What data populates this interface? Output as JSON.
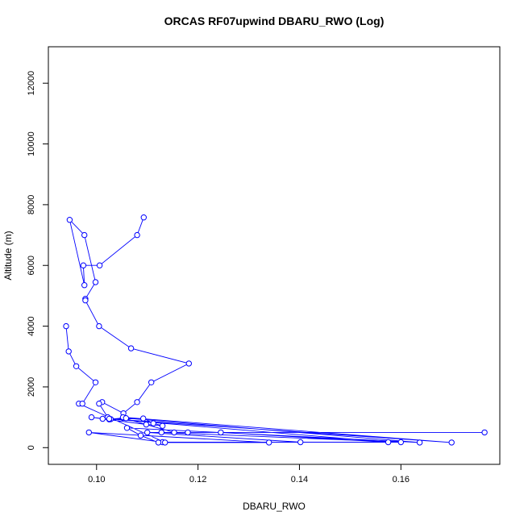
{
  "chart_data": {
    "type": "line",
    "title": "ORCAS RF07upwind DBARU_RWO (Log)",
    "xlabel": "DBARU_RWO",
    "ylabel": "Altitude (m)",
    "xlim": [
      0.0905,
      0.1795
    ],
    "ylim": [
      -550,
      13200
    ],
    "x_ticks": [
      0.1,
      0.12,
      0.14,
      0.16
    ],
    "x_tick_labels": [
      "0.10",
      "0.12",
      "0.14",
      "0.16"
    ],
    "y_ticks": [
      0,
      2000,
      4000,
      6000,
      8000,
      10000,
      12000
    ],
    "y_tick_labels": [
      "0",
      "2000",
      "4000",
      "6000",
      "8000",
      "10000",
      "12000"
    ],
    "grid": false,
    "legend": "none",
    "series": [
      {
        "color": "#0000ff",
        "marker": "open-circle",
        "x": [
          0.1093,
          0.108,
          0.1006,
          0.0974,
          0.0976,
          0.0947,
          0.0976,
          0.0998,
          0.0978,
          0.0978,
          0.1005,
          0.1068,
          0.1182,
          0.1108,
          0.108,
          0.1053,
          0.1011,
          0.1005,
          0.1022,
          0.1028,
          0.1092,
          0.1112,
          0.113,
          0.1098,
          0.1012,
          0.099,
          0.1025,
          0.1052,
          0.1153,
          0.1765,
          0.118,
          0.1128,
          0.16,
          0.113,
          0.1402,
          0.11,
          0.1245,
          0.1575,
          0.1025,
          0.17,
          0.1052,
          0.1058,
          0.1637,
          0.106,
          0.1087,
          0.1122,
          0.134,
          0.0985,
          0.1135,
          0.0965,
          0.0972,
          0.0998,
          0.096,
          0.0945,
          0.094
        ],
        "y": [
          7580,
          7000,
          6000,
          6000,
          5350,
          7500,
          7000,
          5450,
          4900,
          4850,
          4000,
          3270,
          2770,
          2150,
          1500,
          1130,
          1500,
          1450,
          1000,
          940,
          960,
          800,
          720,
          760,
          950,
          1000,
          930,
          980,
          500,
          500,
          500,
          500,
          180,
          180,
          180,
          500,
          500,
          180,
          950,
          170,
          1000,
          970,
          170,
          650,
          400,
          170,
          170,
          500,
          170,
          1450,
          1450,
          2150,
          2680,
          3170,
          4000
        ]
      }
    ]
  }
}
